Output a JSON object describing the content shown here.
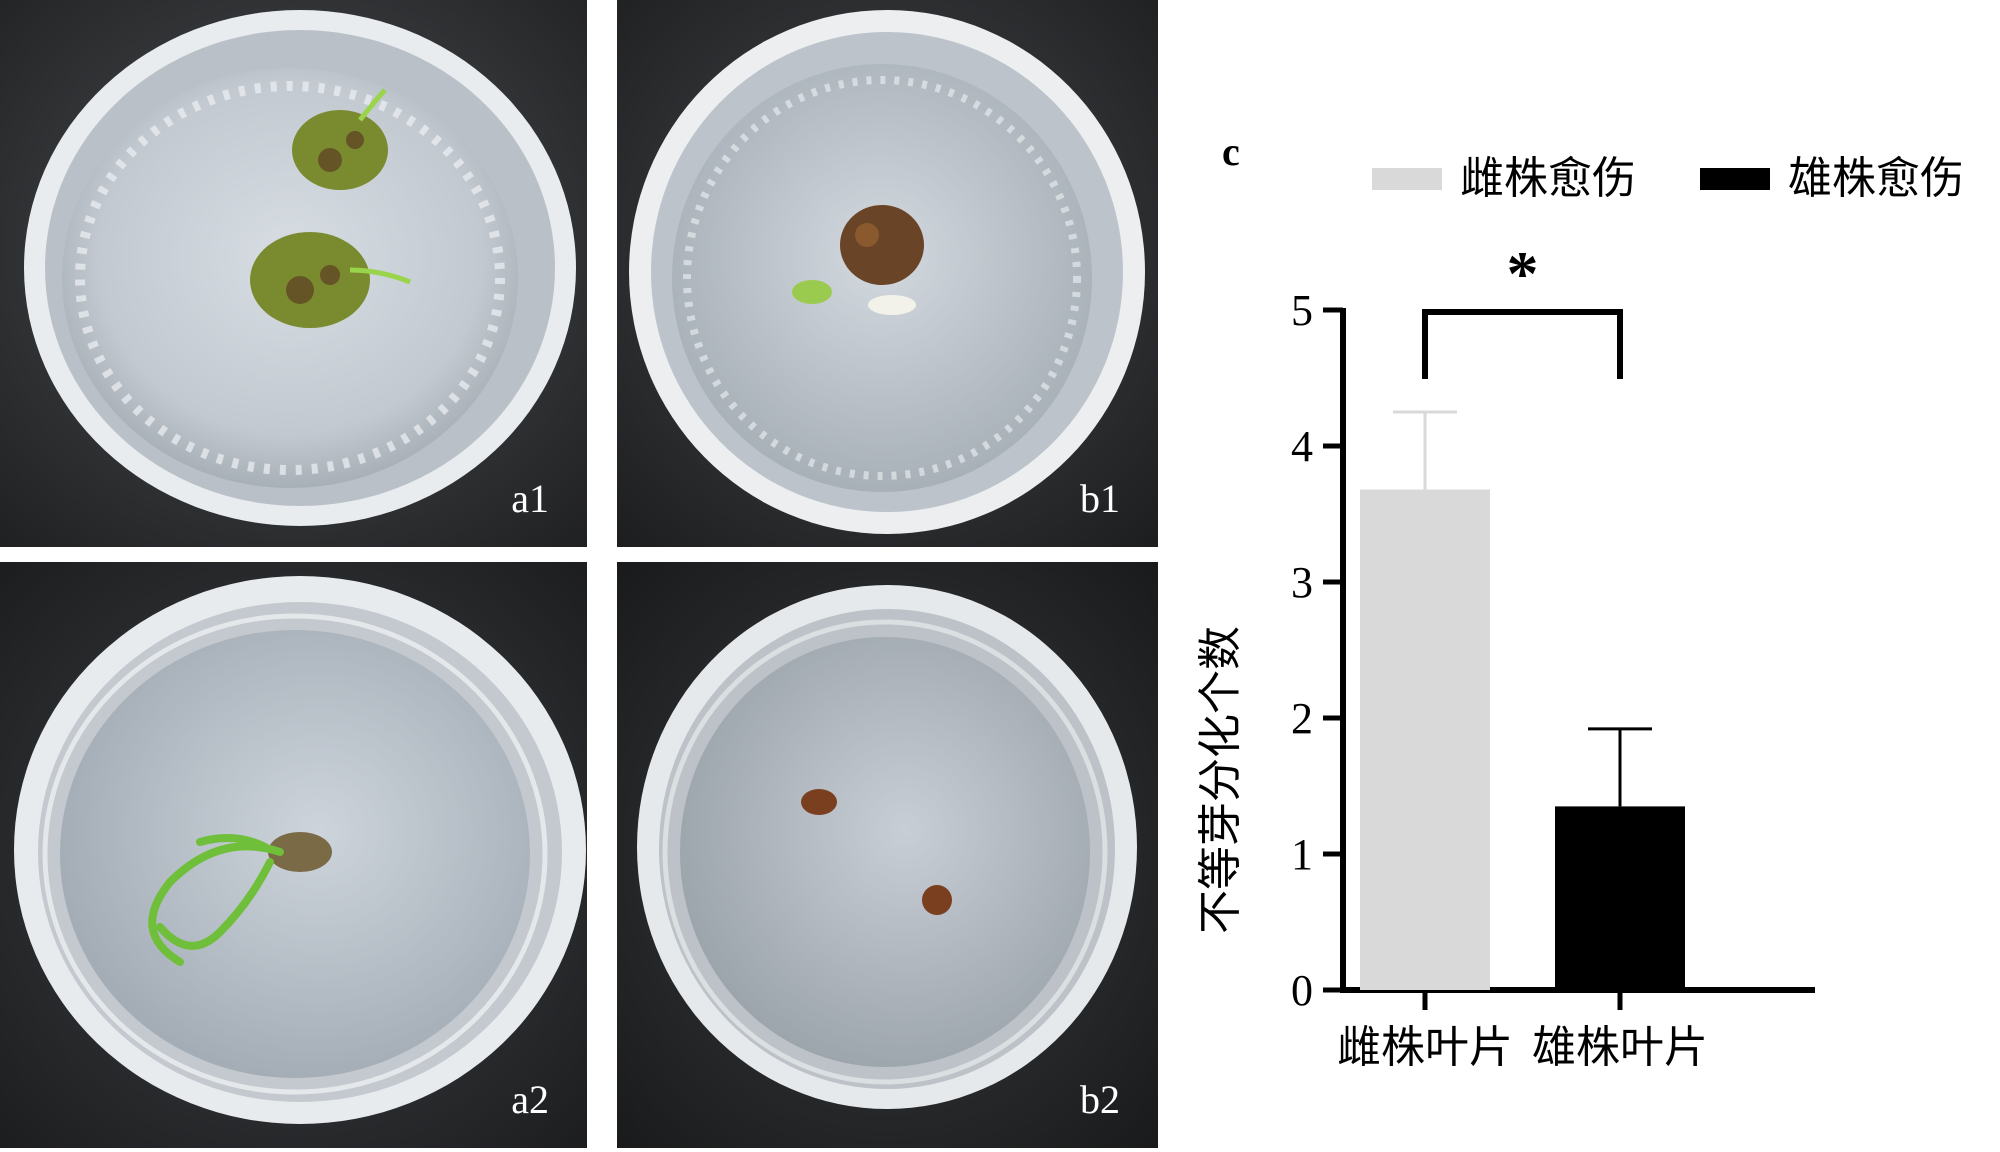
{
  "panels": [
    {
      "id": "a1",
      "label": "a1"
    },
    {
      "id": "b1",
      "label": "b1"
    },
    {
      "id": "a2",
      "label": "a2"
    },
    {
      "id": "b2",
      "label": "b2"
    }
  ],
  "chart_panel_label": "c",
  "chart_data": {
    "type": "bar",
    "categories": [
      "雌株叶片",
      "雄株叶片"
    ],
    "series": [
      {
        "name": "雌株愈伤",
        "values": [
          3.68,
          null
        ],
        "error": [
          0.57,
          null
        ],
        "color": "#d9d9d9"
      },
      {
        "name": "雄株愈伤",
        "values": [
          null,
          1.35
        ],
        "error": [
          null,
          0.57
        ],
        "color": "#000000"
      }
    ],
    "ylabel": "不等芽分化个数",
    "xlabel": "",
    "ylim": [
      0,
      5
    ],
    "yticks": [
      0,
      1,
      2,
      3,
      4,
      5
    ],
    "significance": {
      "between": [
        0,
        1
      ],
      "label": "*"
    },
    "legend_position": "top",
    "grid": false
  }
}
